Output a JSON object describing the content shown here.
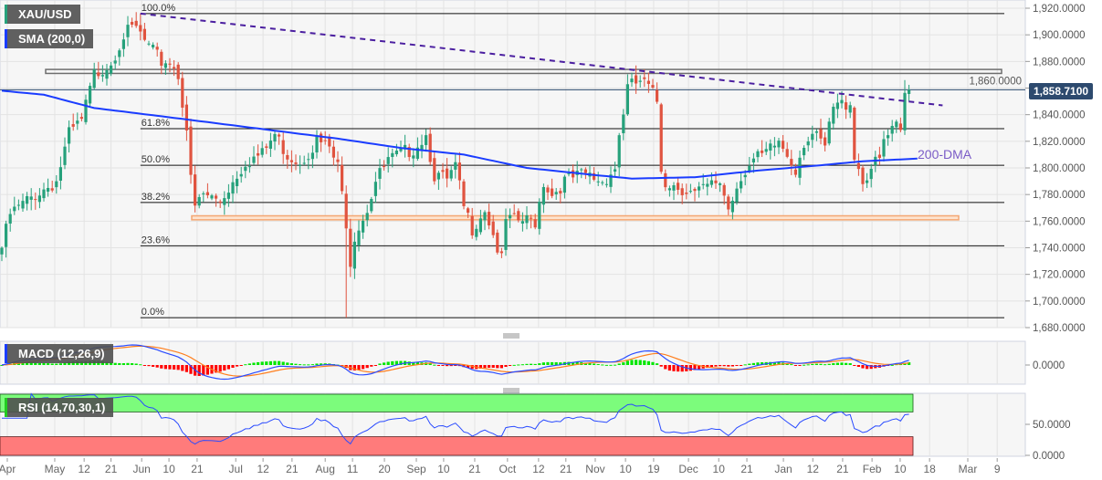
{
  "symbol_label": "XAU/USD",
  "sma_label": "SMA (200,0)",
  "macd_label": "MACD (12,26,9)",
  "rsi_label": "RSI (14,70,30,1)",
  "dma_annotation": "200-DMA",
  "current_price_label": "1,858.7100",
  "colors": {
    "up": "#26a17b",
    "down": "#e0533f",
    "sma": "#1a3cff",
    "trendline": "#4b1fa0",
    "macd": "#2a4bff",
    "signal": "#ff7f1e",
    "hist_up": "#00e600",
    "hist_down": "#ff0000",
    "rsi": "#2a4bff",
    "overbought": "#7cfc7c",
    "oversold": "#ff7b7b",
    "price_tag": "#2d4a6e"
  },
  "chart_data": {
    "type": "candlestick",
    "title": "XAU/USD",
    "ylim": [
      1680,
      1920
    ],
    "y_ticks": [
      "1,920.0000",
      "1,900.0000",
      "1,880.0000",
      "1,860.0000",
      "1,840.0000",
      "1,820.0000",
      "1,800.0000",
      "1,780.0000",
      "1,760.0000",
      "1,740.0000",
      "1,720.0000",
      "1,700.0000",
      "1,680.0000"
    ],
    "y_tick_values": [
      1920,
      1900,
      1880,
      1860,
      1840,
      1820,
      1800,
      1780,
      1760,
      1740,
      1720,
      1700,
      1680
    ],
    "candle_count": 217,
    "close_path": [
      [
        0,
        1740
      ],
      [
        2,
        1765
      ],
      [
        8,
        1780
      ],
      [
        13,
        1790
      ],
      [
        16,
        1825
      ],
      [
        19,
        1835
      ],
      [
        22,
        1870
      ],
      [
        26,
        1880
      ],
      [
        29,
        1900
      ],
      [
        32,
        1905
      ],
      [
        33,
        1900
      ],
      [
        35,
        1890
      ],
      [
        38,
        1880
      ],
      [
        40,
        1880
      ],
      [
        42,
        1870
      ],
      [
        44,
        1830
      ],
      [
        45,
        1790
      ],
      [
        46,
        1770
      ],
      [
        48,
        1780
      ],
      [
        52,
        1775
      ],
      [
        55,
        1790
      ],
      [
        58,
        1805
      ],
      [
        62,
        1810
      ],
      [
        65,
        1825
      ],
      [
        68,
        1810
      ],
      [
        71,
        1805
      ],
      [
        75,
        1820
      ],
      [
        78,
        1815
      ],
      [
        80,
        1800
      ],
      [
        82,
        1760
      ],
      [
        83,
        1730
      ],
      [
        84,
        1750
      ],
      [
        87,
        1770
      ],
      [
        89,
        1790
      ],
      [
        92,
        1805
      ],
      [
        95,
        1810
      ],
      [
        98,
        1815
      ],
      [
        101,
        1825
      ],
      [
        103,
        1795
      ],
      [
        106,
        1790
      ],
      [
        108,
        1800
      ],
      [
        110,
        1770
      ],
      [
        112,
        1755
      ],
      [
        115,
        1770
      ],
      [
        117,
        1750
      ],
      [
        119,
        1730
      ],
      [
        120,
        1760
      ],
      [
        123,
        1760
      ],
      [
        127,
        1760
      ],
      [
        129,
        1790
      ],
      [
        131,
        1780
      ],
      [
        134,
        1790
      ],
      [
        139,
        1795
      ],
      [
        143,
        1790
      ],
      [
        146,
        1800
      ],
      [
        147,
        1825
      ],
      [
        149,
        1860
      ],
      [
        152,
        1865
      ],
      [
        154,
        1860
      ],
      [
        156,
        1850
      ],
      [
        157,
        1800
      ],
      [
        158,
        1790
      ],
      [
        162,
        1785
      ],
      [
        165,
        1780
      ],
      [
        168,
        1785
      ],
      [
        171,
        1790
      ],
      [
        173,
        1770
      ],
      [
        176,
        1795
      ],
      [
        179,
        1805
      ],
      [
        182,
        1810
      ],
      [
        185,
        1820
      ],
      [
        189,
        1800
      ],
      [
        191,
        1820
      ],
      [
        193,
        1825
      ],
      [
        196,
        1815
      ],
      [
        198,
        1845
      ],
      [
        202,
        1850
      ],
      [
        203,
        1810
      ],
      [
        205,
        1790
      ],
      [
        207,
        1800
      ],
      [
        209,
        1805
      ],
      [
        210,
        1820
      ],
      [
        213,
        1830
      ],
      [
        214,
        1825
      ],
      [
        215,
        1855
      ],
      [
        216,
        1858.71
      ]
    ],
    "extremes": [
      {
        "index": 33,
        "high": 1916
      },
      {
        "index": 82,
        "low": 1687.5
      },
      {
        "index": 151,
        "high": 1877
      },
      {
        "index": 215,
        "high": 1866
      }
    ],
    "sma200": [
      [
        0,
        1858
      ],
      [
        10,
        1855
      ],
      [
        22,
        1845
      ],
      [
        40,
        1838
      ],
      [
        55,
        1832
      ],
      [
        65,
        1828
      ],
      [
        80,
        1822
      ],
      [
        95,
        1815
      ],
      [
        110,
        1810
      ],
      [
        125,
        1800
      ],
      [
        140,
        1795
      ],
      [
        150,
        1792
      ],
      [
        165,
        1793
      ],
      [
        180,
        1798
      ],
      [
        195,
        1802
      ],
      [
        205,
        1805
      ],
      [
        218,
        1807
      ]
    ],
    "current_price": 1858.71,
    "fibonacci": [
      {
        "label": "100.0%",
        "value": 1916
      },
      {
        "label": "61.8%",
        "value": 1829.5
      },
      {
        "label": "50.0%",
        "value": 1802
      },
      {
        "label": "38.2%",
        "value": 1774
      },
      {
        "label": "23.6%",
        "value": 1741.5
      },
      {
        "label": "0.0%",
        "value": 1687.5
      }
    ],
    "fib_start_index": 33,
    "trendline": {
      "from": [
        33,
        1916
      ],
      "to": [
        224,
        1847
      ]
    },
    "resistance_zone": [
      1871,
      1874
    ],
    "support_zone": [
      1761,
      1764
    ],
    "macd": {
      "params": [
        12,
        26,
        9
      ],
      "y_ticks": [
        "0.0000"
      ]
    },
    "rsi": {
      "params": [
        14,
        70,
        30,
        1
      ],
      "overbought": 70,
      "oversold": 30,
      "y_ticks": [
        "50.0000",
        "0.0000"
      ],
      "y_tick_values": [
        50,
        0
      ]
    },
    "x_labels": [
      {
        "label": "Apr",
        "index": 1.3
      },
      {
        "label": "May",
        "index": 12.6
      },
      {
        "label": "12",
        "index": 19.6
      },
      {
        "label": "21",
        "index": 26
      },
      {
        "label": "Jun",
        "index": 33.3
      },
      {
        "label": "10",
        "index": 39.8
      },
      {
        "label": "21",
        "index": 46.5
      },
      {
        "label": "Jul",
        "index": 55.7
      },
      {
        "label": "12",
        "index": 62.2
      },
      {
        "label": "21",
        "index": 69.1
      },
      {
        "label": "Aug",
        "index": 77
      },
      {
        "label": "11",
        "index": 83.5
      },
      {
        "label": "20",
        "index": 91.1
      },
      {
        "label": "Sep",
        "index": 98.7
      },
      {
        "label": "10",
        "index": 105.2
      },
      {
        "label": "21",
        "index": 112.6
      },
      {
        "label": "Oct",
        "index": 120.4
      },
      {
        "label": "12",
        "index": 127.8
      },
      {
        "label": "21",
        "index": 134.3
      },
      {
        "label": "Nov",
        "index": 141.3
      },
      {
        "label": "10",
        "index": 148.5
      },
      {
        "label": "19",
        "index": 155.2
      },
      {
        "label": "Dec",
        "index": 163.5
      },
      {
        "label": "10",
        "index": 170.7
      },
      {
        "label": "21",
        "index": 177.4
      },
      {
        "label": "Jan",
        "index": 186.1
      },
      {
        "label": "12",
        "index": 193.1
      },
      {
        "label": "21",
        "index": 200.2
      },
      {
        "label": "Feb",
        "index": 207.2
      },
      {
        "label": "10",
        "index": 213.9
      },
      {
        "label": "18",
        "index": 220.9
      },
      {
        "label": "Mar",
        "index": 230
      },
      {
        "label": "9",
        "index": 237
      }
    ]
  }
}
